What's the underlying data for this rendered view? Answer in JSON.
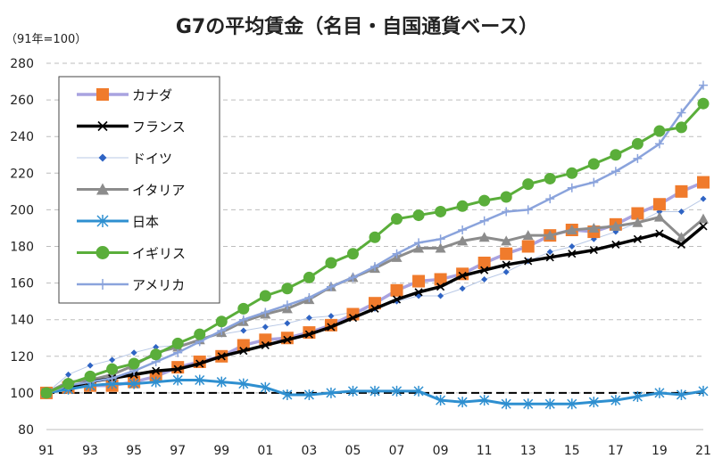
{
  "chart_data": {
    "type": "line",
    "title": "G7の平均賃金（名目・自国通貨ベース）",
    "unit_label": "（91年=100）",
    "xlabel": "",
    "ylabel": "",
    "ylim": [
      80,
      280
    ],
    "yticks": [
      80,
      100,
      120,
      140,
      160,
      180,
      200,
      220,
      240,
      260,
      280
    ],
    "x": [
      1991,
      1992,
      1993,
      1994,
      1995,
      1996,
      1997,
      1998,
      1999,
      2000,
      2001,
      2002,
      2003,
      2004,
      2005,
      2006,
      2007,
      2008,
      2009,
      2010,
      2011,
      2012,
      2013,
      2014,
      2015,
      2016,
      2017,
      2018,
      2019,
      2020,
      2021
    ],
    "xtick_labels": [
      "91",
      "93",
      "95",
      "97",
      "99",
      "01",
      "03",
      "05",
      "07",
      "09",
      "11",
      "13",
      "15",
      "17",
      "19",
      "21"
    ],
    "baseline": 100,
    "legend_position": "top-left",
    "series": [
      {
        "name": "カナダ",
        "color": "#f07b2c",
        "line_color": "#a9a3e0",
        "marker": "square",
        "values": [
          100,
          103,
          104,
          104,
          106,
          109,
          114,
          117,
          120,
          126,
          129,
          130,
          133,
          137,
          143,
          149,
          156,
          161,
          162,
          165,
          171,
          176,
          180,
          186,
          189,
          188,
          192,
          198,
          203,
          210,
          215
        ]
      },
      {
        "name": "フランス",
        "color": "#000000",
        "line_color": "#000000",
        "marker": "x",
        "values": [
          100,
          103,
          106,
          108,
          110,
          112,
          113,
          116,
          120,
          123,
          126,
          129,
          132,
          136,
          141,
          146,
          151,
          155,
          158,
          164,
          167,
          170,
          172,
          174,
          176,
          178,
          181,
          184,
          187,
          181,
          191
        ]
      },
      {
        "name": "ドイツ",
        "color": "#2f64c4",
        "line_color": "#b9c9e6",
        "marker": "diamond",
        "values": [
          100,
          110,
          115,
          118,
          122,
          125,
          126,
          129,
          132,
          134,
          136,
          138,
          141,
          142,
          144,
          146,
          150,
          153,
          153,
          157,
          162,
          166,
          172,
          177,
          180,
          184,
          188,
          193,
          199,
          199,
          206
        ]
      },
      {
        "name": "イタリア",
        "color": "#8c8c8c",
        "line_color": "#8c8c8c",
        "marker": "triangle",
        "values": [
          100,
          106,
          107,
          110,
          115,
          122,
          125,
          129,
          133,
          139,
          143,
          146,
          151,
          158,
          163,
          168,
          174,
          179,
          179,
          183,
          185,
          183,
          186,
          186,
          189,
          190,
          191,
          193,
          196,
          185,
          195
        ]
      },
      {
        "name": "日本",
        "color": "#2e8fd0",
        "line_color": "#2e8fd0",
        "marker": "star",
        "values": [
          100,
          102,
          104,
          105,
          105,
          106,
          107,
          107,
          106,
          105,
          103,
          99,
          99,
          100,
          101,
          101,
          101,
          101,
          96,
          95,
          96,
          94,
          94,
          94,
          94,
          95,
          96,
          98,
          100,
          99,
          101
        ]
      },
      {
        "name": "イギリス",
        "color": "#5aae3a",
        "line_color": "#5aae3a",
        "marker": "circle",
        "values": [
          100,
          105,
          109,
          113,
          116,
          121,
          127,
          132,
          139,
          146,
          153,
          157,
          163,
          171,
          176,
          185,
          195,
          197,
          199,
          202,
          205,
          207,
          214,
          217,
          220,
          225,
          230,
          236,
          243,
          245,
          258
        ]
      },
      {
        "name": "アメリカ",
        "color": "#8aa3dc",
        "line_color": "#8aa3dc",
        "marker": "plus",
        "values": [
          100,
          104,
          106,
          108,
          112,
          117,
          122,
          128,
          134,
          140,
          144,
          148,
          152,
          158,
          163,
          169,
          176,
          182,
          184,
          189,
          194,
          199,
          200,
          206,
          212,
          215,
          221,
          228,
          236,
          253,
          268
        ]
      }
    ]
  }
}
